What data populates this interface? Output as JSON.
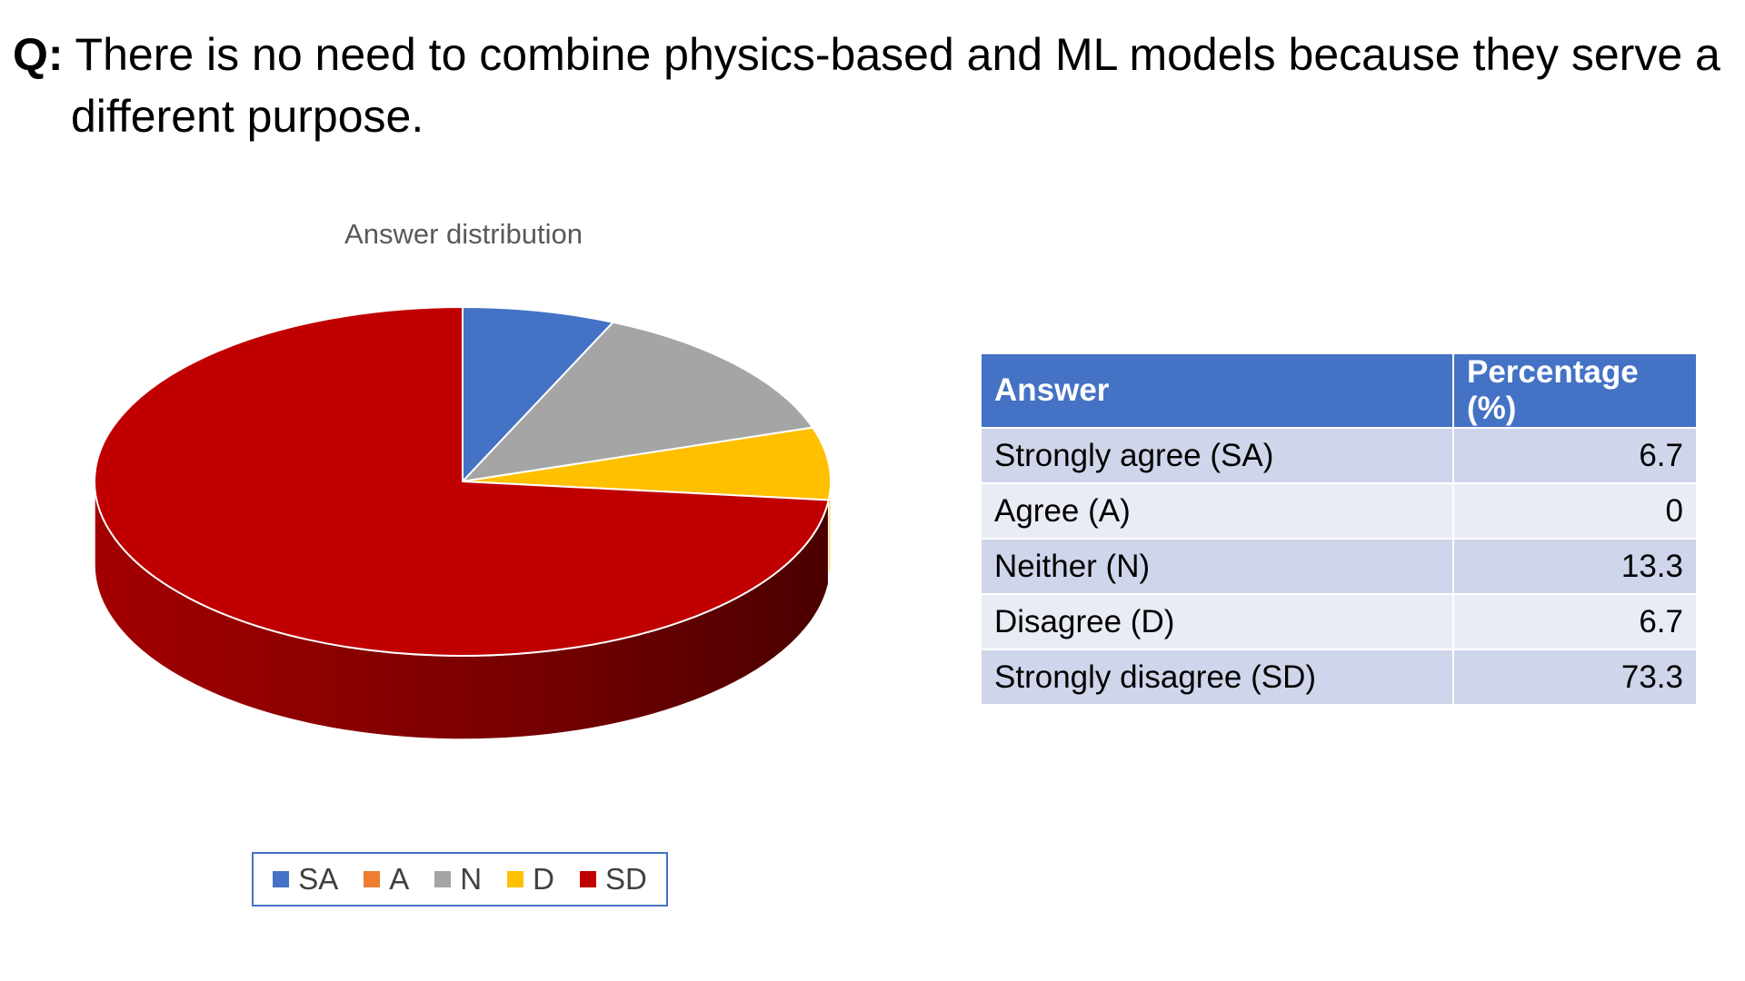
{
  "question": {
    "label": "Q:",
    "text": "There is no need to combine physics-based and ML models because they serve a different purpose."
  },
  "chart_data": {
    "type": "pie",
    "title": "Answer distribution",
    "style": "3d",
    "start_angle_deg": 0,
    "direction": "clockwise",
    "legend_position": "bottom",
    "series": [
      {
        "categories": [
          "SA",
          "A",
          "N",
          "D",
          "SD"
        ],
        "values": [
          6.7,
          0,
          13.3,
          6.7,
          73.3
        ],
        "colors": [
          "#4472C4",
          "#ED7D31",
          "#A5A5A5",
          "#FFC000",
          "#C00000"
        ]
      }
    ]
  },
  "table": {
    "headers": [
      "Answer",
      "Percentage (%)"
    ],
    "rows": [
      [
        "Strongly agree (SA)",
        "6.7"
      ],
      [
        "Agree (A)",
        "0"
      ],
      [
        "Neither (N)",
        "13.3"
      ],
      [
        "Disagree (D)",
        "6.7"
      ],
      [
        "Strongly disagree (SD)",
        "73.3"
      ]
    ]
  }
}
